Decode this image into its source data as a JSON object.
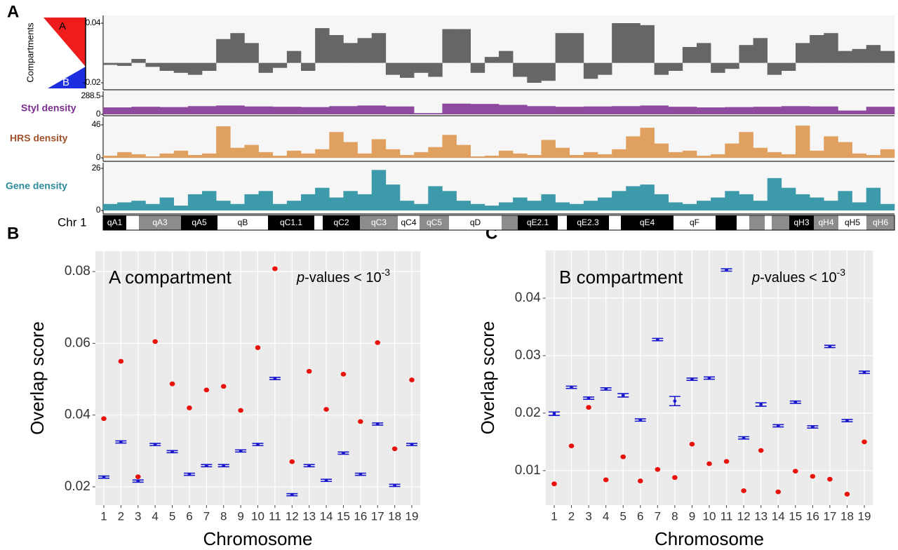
{
  "panel_labels": [
    "A",
    "B",
    "C"
  ],
  "compartment_key": {
    "title": "Compartments",
    "a": "A",
    "b": "B",
    "a_color": "#ee1c1c",
    "b_color": "#1c2ee0"
  },
  "chromosome": {
    "label": "Chr 1",
    "bands": [
      {
        "label": "qA1",
        "color": "#000000"
      },
      {
        "label": null,
        "color": "#ffffff"
      },
      {
        "label": "qA3",
        "color": "#8c8c8c"
      },
      {
        "label": "qA5",
        "color": "#000000"
      },
      {
        "label": "qB",
        "color": "#ffffff"
      },
      {
        "label": "qC1.1",
        "color": "#000000"
      },
      {
        "label": null,
        "color": "#ffffff"
      },
      {
        "label": "qC2",
        "color": "#000000"
      },
      {
        "label": "qC3",
        "color": "#8c8c8c"
      },
      {
        "label": "qC4",
        "color": "#ffffff"
      },
      {
        "label": "qC5",
        "color": "#8c8c8c"
      },
      {
        "label": "qD",
        "color": "#ffffff"
      },
      {
        "label": null,
        "color": "#8c8c8c"
      },
      {
        "label": "qE2.1",
        "color": "#000000"
      },
      {
        "label": null,
        "color": "#ffffff"
      },
      {
        "label": "qE2.3",
        "color": "#000000"
      },
      {
        "label": null,
        "color": "#ffffff"
      },
      {
        "label": "qE4",
        "color": "#000000"
      },
      {
        "label": "qF",
        "color": "#ffffff"
      },
      {
        "label": null,
        "color": "#000000"
      },
      {
        "label": null,
        "color": "#ffffff"
      },
      {
        "label": null,
        "color": "#8c8c8c"
      },
      {
        "label": null,
        "color": "#ffffff"
      },
      {
        "label": null,
        "color": "#8c8c8c"
      },
      {
        "label": "qH3",
        "color": "#000000"
      },
      {
        "label": "qH4",
        "color": "#8c8c8c"
      },
      {
        "label": "qH5",
        "color": "#ffffff"
      },
      {
        "label": "qH6",
        "color": "#8c8c8c"
      }
    ]
  },
  "chart_data": [
    {
      "type": "bar",
      "label": null,
      "color": "#666666",
      "ylim": [
        -0.02,
        0.04
      ],
      "yticks": [
        -0.02,
        0.04
      ],
      "values": [
        -0.002,
        -0.003,
        0.004,
        -0.004,
        -0.008,
        -0.01,
        -0.012,
        -0.008,
        0.024,
        0.03,
        0.02,
        -0.01,
        -0.005,
        0.012,
        -0.008,
        0.035,
        0.028,
        0.02,
        0.025,
        0.03,
        -0.012,
        -0.015,
        -0.01,
        -0.014,
        0.034,
        0.034,
        -0.01,
        0.006,
        0.012,
        -0.014,
        -0.02,
        -0.018,
        0.03,
        0.03,
        -0.016,
        -0.012,
        0.04,
        0.04,
        0.038,
        -0.012,
        -0.008,
        0.016,
        0.02,
        -0.01,
        -0.006,
        0.018,
        0.025,
        -0.012,
        -0.008,
        0.02,
        0.028,
        0.03,
        0.012,
        0.014,
        0.018,
        0.012
      ]
    },
    {
      "type": "bar",
      "label": "Styl density",
      "label_color": "#7b2d8e",
      "color": "#8e4a9e",
      "ylim": [
        0,
        288.5
      ],
      "yticks": [
        0,
        288.5
      ],
      "values": [
        110,
        120,
        115,
        130,
        140,
        125,
        120,
        115,
        130,
        140,
        125,
        20,
        170,
        165,
        150,
        130,
        120,
        125,
        130,
        140,
        120,
        110,
        115,
        120,
        130,
        125,
        60,
        120
      ]
    },
    {
      "type": "bar",
      "label": "HRS density",
      "label_color": "#a0522d",
      "color": "#e0a060",
      "ylim": [
        0,
        46
      ],
      "yticks": [
        0,
        46
      ],
      "values": [
        3,
        8,
        5,
        2,
        6,
        10,
        4,
        6,
        44,
        14,
        18,
        8,
        3,
        10,
        6,
        12,
        36,
        22,
        6,
        26,
        12,
        4,
        8,
        15,
        32,
        18,
        2,
        3,
        10,
        6,
        4,
        25,
        14,
        4,
        8,
        5,
        12,
        30,
        42,
        20,
        8,
        10,
        3,
        5,
        20,
        36,
        14,
        8,
        5,
        45,
        10,
        30,
        22,
        6,
        4,
        12
      ]
    },
    {
      "type": "bar",
      "label": "Gene density",
      "label_color": "#2e8b9a",
      "color": "#3c9aab",
      "ylim": [
        0,
        26
      ],
      "yticks": [
        0,
        26
      ],
      "values": [
        4,
        5,
        6,
        4,
        8,
        3,
        10,
        12,
        6,
        4,
        10,
        12,
        4,
        6,
        10,
        14,
        8,
        12,
        10,
        25,
        16,
        6,
        4,
        15,
        12,
        6,
        4,
        3,
        5,
        8,
        6,
        10,
        5,
        4,
        6,
        8,
        12,
        15,
        16,
        10,
        5,
        4,
        6,
        8,
        12,
        10,
        6,
        20,
        14,
        10,
        8,
        6,
        12,
        5,
        14,
        4
      ]
    },
    {
      "type": "dotrange",
      "title": "A compartment",
      "annotation": {
        "italic": "p",
        "text": "-values < 10",
        "sup": "-3"
      },
      "x_label": "Chromosome",
      "y_label": "Overlap score",
      "categories": [
        "1",
        "2",
        "3",
        "4",
        "5",
        "6",
        "7",
        "8",
        "9",
        "10",
        "11",
        "12",
        "13",
        "14",
        "15",
        "16",
        "17",
        "18",
        "19"
      ],
      "ylim": [
        0.0149,
        0.0857
      ],
      "yticks": [
        0.02,
        0.04,
        0.06,
        0.08
      ],
      "grid": true,
      "points": {
        "color": "#e8120c",
        "values": [
          0.039,
          0.055,
          0.0228,
          0.0605,
          0.0487,
          0.042,
          0.047,
          0.048,
          0.0413,
          0.0588,
          0.0808,
          0.027,
          0.0522,
          0.0416,
          0.0514,
          0.0382,
          0.0602,
          0.0306,
          0.0498
        ]
      },
      "intervals": {
        "color": "#1a1acc",
        "values": [
          0.0227,
          0.0325,
          0.0216,
          0.0318,
          0.0298,
          0.0235,
          0.0259,
          0.0259,
          0.03,
          0.0318,
          0.0502,
          0.0178,
          0.0259,
          0.0218,
          0.0294,
          0.0235,
          0.0375,
          0.0204,
          0.0318
        ],
        "errors": [
          0.0003,
          0.0003,
          0.0003,
          0.0003,
          0.0003,
          0.0003,
          0.0003,
          0.0003,
          0.0003,
          0.0003,
          0.0003,
          0.0003,
          0.0003,
          0.0003,
          0.0003,
          0.0003,
          0.0003,
          0.0003,
          0.0003
        ]
      }
    },
    {
      "type": "dotrange",
      "title": "B compartment",
      "annotation": {
        "italic": "p",
        "text": "-values < 10",
        "sup": "-3"
      },
      "x_label": "Chromosome",
      "y_label": "Overlap score",
      "categories": [
        "1",
        "2",
        "3",
        "4",
        "5",
        "6",
        "7",
        "8",
        "9",
        "10",
        "11",
        "12",
        "13",
        "14",
        "15",
        "16",
        "17",
        "18",
        "19"
      ],
      "ylim": [
        0.004,
        0.0483
      ],
      "yticks": [
        0.01,
        0.02,
        0.03,
        0.04
      ],
      "grid": true,
      "points": {
        "color": "#e8120c",
        "values": [
          0.0077,
          0.0143,
          0.021,
          0.0084,
          0.0124,
          0.0082,
          0.0102,
          0.0088,
          0.0146,
          0.0112,
          0.0116,
          0.0065,
          0.0135,
          0.0063,
          0.0099,
          0.009,
          0.0085,
          0.0059,
          0.015
        ]
      },
      "intervals": {
        "color": "#1a1acc",
        "values": [
          0.0199,
          0.0245,
          0.0226,
          0.0242,
          0.0231,
          0.0188,
          0.0328,
          0.0221,
          0.0259,
          0.0261,
          0.0449,
          0.0157,
          0.0215,
          0.0178,
          0.0219,
          0.0176,
          0.0316,
          0.0187,
          0.0271
        ],
        "errors": [
          0.0003,
          0.0002,
          0.0002,
          0.0002,
          0.0003,
          0.0002,
          0.0002,
          0.0008,
          0.0002,
          0.0002,
          0.0002,
          0.0002,
          0.0003,
          0.0002,
          0.0002,
          0.0002,
          0.0002,
          0.0002,
          0.0002
        ]
      }
    }
  ]
}
